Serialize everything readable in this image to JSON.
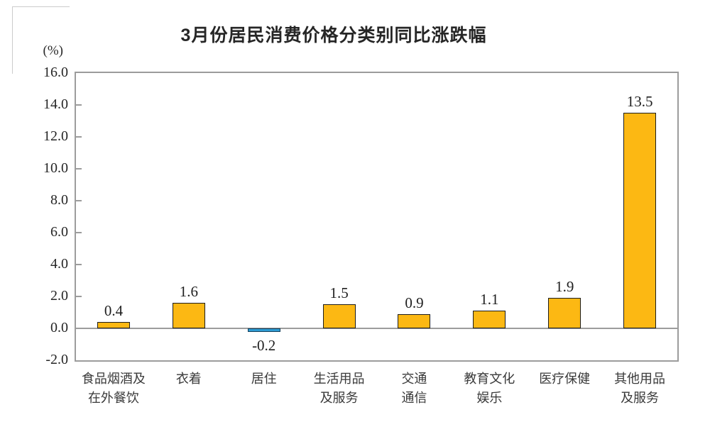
{
  "page": {
    "background": "#ffffff"
  },
  "chart_data": {
    "type": "bar",
    "title": "3月份居民消费价格分类别同比涨跌幅",
    "unit_label": "(%)",
    "categories": [
      [
        "食品烟酒及",
        "在外餐饮"
      ],
      [
        "衣着"
      ],
      [
        "居住"
      ],
      [
        "生活用品",
        "及服务"
      ],
      [
        "交通",
        "通信"
      ],
      [
        "教育文化",
        "娱乐"
      ],
      [
        "医疗保健"
      ],
      [
        "其他用品",
        "及服务"
      ]
    ],
    "values": [
      0.4,
      1.6,
      -0.2,
      1.5,
      0.9,
      1.1,
      1.9,
      13.5
    ],
    "value_labels": [
      "0.4",
      "1.6",
      "-0.2",
      "1.5",
      "0.9",
      "1.1",
      "1.9",
      "13.5"
    ],
    "ylim": [
      -2.0,
      16.0
    ],
    "ytick_step": 2.0,
    "ytick_labels": [
      "16.0",
      "14.0",
      "12.0",
      "10.0",
      "8.0",
      "6.0",
      "4.0",
      "2.0",
      "0.0",
      "-2.0"
    ],
    "xlabel": "",
    "ylabel": "(%)",
    "grid": false,
    "legend": null,
    "colors": {
      "positive_bar": "#FCB813",
      "positive_bar_border": "#1c1c1c",
      "negative_bar": "#2E9CD4",
      "negative_bar_border": "#123f5c",
      "axis": "#9c9c9c",
      "title_text": "#262626",
      "label_text": "#3a3a3a",
      "number_text": "#1f1f1f"
    }
  }
}
